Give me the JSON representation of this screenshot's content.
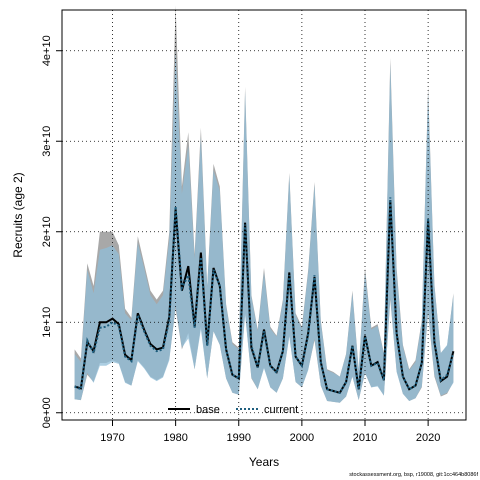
{
  "chart_data": {
    "type": "line",
    "xlabel": "Years",
    "ylabel": "Recruits (age 2)",
    "xlim": [
      1962,
      2026
    ],
    "ylim": [
      -800000000.0,
      44500000000.0
    ],
    "x_ticks": [
      1970,
      1980,
      1990,
      2000,
      2010,
      2020
    ],
    "x_tick_labels": [
      "1970",
      "1980",
      "1990",
      "2000",
      "2010",
      "2020"
    ],
    "y_ticks": [
      0,
      10000000000.0,
      20000000000.0,
      30000000000.0,
      40000000000.0
    ],
    "y_tick_labels": [
      "0e+00",
      "1e+10",
      "2e+10",
      "3e+10",
      "4e+10"
    ],
    "grid": true,
    "legend_position": "bottom",
    "footnote": "stockassessment.org, bsp, r19008, git:1cc464b8086f",
    "x": [
      1964,
      1965,
      1966,
      1967,
      1968,
      1969,
      1970,
      1971,
      1972,
      1973,
      1974,
      1975,
      1976,
      1977,
      1978,
      1979,
      1980,
      1981,
      1982,
      1983,
      1984,
      1985,
      1986,
      1987,
      1988,
      1989,
      1990,
      1991,
      1992,
      1993,
      1994,
      1995,
      1996,
      1997,
      1998,
      1999,
      2000,
      2001,
      2002,
      2003,
      2004,
      2005,
      2006,
      2007,
      2008,
      2009,
      2010,
      2011,
      2012,
      2013,
      2014,
      2015,
      2016,
      2017,
      2018,
      2019,
      2020,
      2021,
      2022,
      2023,
      2024
    ],
    "series": [
      {
        "name": "base",
        "color": "#000000",
        "band_color": "#9e9e9e",
        "values": [
          2900000000.0,
          2700000000.0,
          7800000000.0,
          6800000000.0,
          10000000000.0,
          10000000000.0,
          10400000000.0,
          9800000000.0,
          6400000000.0,
          5800000000.0,
          11000000000.0,
          9200000000.0,
          7600000000.0,
          7000000000.0,
          7200000000.0,
          10600000000.0,
          22500000000.0,
          13500000000.0,
          16200000000.0,
          9500000000.0,
          17700000000.0,
          7500000000.0,
          16000000000.0,
          14000000000.0,
          7000000000.0,
          4200000000.0,
          3800000000.0,
          21000000000.0,
          7200000000.0,
          5000000000.0,
          9200000000.0,
          5200000000.0,
          4500000000.0,
          6800000000.0,
          15500000000.0,
          6200000000.0,
          5200000000.0,
          8800000000.0,
          15000000000.0,
          5600000000.0,
          2600000000.0,
          2400000000.0,
          2200000000.0,
          3400000000.0,
          7400000000.0,
          2600000000.0,
          8500000000.0,
          5200000000.0,
          5600000000.0,
          3600000000.0,
          23500000000.0,
          8800000000.0,
          4000000000.0,
          2600000000.0,
          3000000000.0,
          5500000000.0,
          21200000000.0,
          7800000000.0,
          3500000000.0,
          4000000000.0,
          6800000000.0
        ],
        "low": [
          1500000000.0,
          1400000000.0,
          4200000000.0,
          3400000000.0,
          5500000000.0,
          5500000000.0,
          5800000000.0,
          5500000000.0,
          3400000000.0,
          3000000000.0,
          5800000000.0,
          5000000000.0,
          4000000000.0,
          3600000000.0,
          4000000000.0,
          6000000000.0,
          11500000000.0,
          7000000000.0,
          8800000000.0,
          4800000000.0,
          9500000000.0,
          3800000000.0,
          9000000000.0,
          7500000000.0,
          3800000000.0,
          2200000000.0,
          2000000000.0,
          11000000000.0,
          3800000000.0,
          2600000000.0,
          5000000000.0,
          2800000000.0,
          2200000000.0,
          3800000000.0,
          8500000000.0,
          3400000000.0,
          2800000000.0,
          4800000000.0,
          8000000000.0,
          3000000000.0,
          1300000000.0,
          1200000000.0,
          1100000000.0,
          1800000000.0,
          4000000000.0,
          1400000000.0,
          4400000000.0,
          2800000000.0,
          3000000000.0,
          1900000000.0,
          12500000000.0,
          4600000000.0,
          2100000000.0,
          1300000000.0,
          1600000000.0,
          2800000000.0,
          11000000000.0,
          4000000000.0,
          1800000000.0,
          2100000000.0,
          3400000000.0
        ],
        "high": [
          7000000000.0,
          6000000000.0,
          16500000000.0,
          14000000000.0,
          20000000000.0,
          20000000000.0,
          20000000000.0,
          18500000000.0,
          11500000000.0,
          10500000000.0,
          19500000000.0,
          16500000000.0,
          13500000000.0,
          12500000000.0,
          13500000000.0,
          20000000000.0,
          45000000000.0,
          25000000000.0,
          31000000000.0,
          17500000000.0,
          31500000000.0,
          14000000000.0,
          27500000000.0,
          25000000000.0,
          12000000000.0,
          7800000000.0,
          7200000000.0,
          36000000000.0,
          13000000000.0,
          9200000000.0,
          16000000000.0,
          9500000000.0,
          8500000000.0,
          12500000000.0,
          26500000000.0,
          11000000000.0,
          9500000000.0,
          15800000000.0,
          25500000000.0,
          10200000000.0,
          4800000000.0,
          4500000000.0,
          4000000000.0,
          6500000000.0,
          13500000000.0,
          4800000000.0,
          16000000000.0,
          9400000000.0,
          9800000000.0,
          6600000000.0,
          39200000000.0,
          16000000000.0,
          7500000000.0,
          4800000000.0,
          5800000000.0,
          10200000000.0,
          36000000000.0,
          14200000000.0,
          6600000000.0,
          7400000000.0,
          13200000000.0
        ]
      },
      {
        "name": "current",
        "color": "#1f5f7f",
        "band_color": "#90bdd8",
        "values": [
          2900000000.0,
          2600000000.0,
          8000000000.0,
          6600000000.0,
          9400000000.0,
          9500000000.0,
          10000000000.0,
          9600000000.0,
          6200000000.0,
          5700000000.0,
          10800000000.0,
          9000000000.0,
          7400000000.0,
          6800000000.0,
          7000000000.0,
          10200000000.0,
          22800000000.0,
          13800000000.0,
          15200000000.0,
          9400000000.0,
          17200000000.0,
          7400000000.0,
          15800000000.0,
          14000000000.0,
          7000000000.0,
          4200000000.0,
          3800000000.0,
          20800000000.0,
          7400000000.0,
          5000000000.0,
          9000000000.0,
          5200000000.0,
          4400000000.0,
          6800000000.0,
          15200000000.0,
          6200000000.0,
          5200000000.0,
          8600000000.0,
          15200000000.0,
          5600000000.0,
          2600000000.0,
          2400000000.0,
          2200000000.0,
          3400000000.0,
          7400000000.0,
          2600000000.0,
          8400000000.0,
          5200000000.0,
          5500000000.0,
          3600000000.0,
          23800000000.0,
          8600000000.0,
          4000000000.0,
          2600000000.0,
          3000000000.0,
          5600000000.0,
          21500000000.0,
          8000000000.0,
          3600000000.0,
          4200000000.0,
          6600000000.0
        ],
        "low": [
          1500000000.0,
          1400000000.0,
          4400000000.0,
          3300000000.0,
          5200000000.0,
          5200000000.0,
          5600000000.0,
          5400000000.0,
          3300000000.0,
          3000000000.0,
          5700000000.0,
          4900000000.0,
          3900000000.0,
          3500000000.0,
          3900000000.0,
          5800000000.0,
          11800000000.0,
          7200000000.0,
          8200000000.0,
          4800000000.0,
          9200000000.0,
          3800000000.0,
          9000000000.0,
          7500000000.0,
          3800000000.0,
          2200000000.0,
          2000000000.0,
          10800000000.0,
          3900000000.0,
          2600000000.0,
          4900000000.0,
          2800000000.0,
          2200000000.0,
          3800000000.0,
          8400000000.0,
          3400000000.0,
          2800000000.0,
          4700000000.0,
          8200000000.0,
          3000000000.0,
          1300000000.0,
          1200000000.0,
          1100000000.0,
          1800000000.0,
          4000000000.0,
          1400000000.0,
          4400000000.0,
          2800000000.0,
          2900000000.0,
          1900000000.0,
          12800000000.0,
          4500000000.0,
          2100000000.0,
          1300000000.0,
          1600000000.0,
          2900000000.0,
          11200000000.0,
          4200000000.0,
          1900000000.0,
          2200000000.0,
          3300000000.0
        ],
        "high": [
          6500000000.0,
          5600000000.0,
          15800000000.0,
          13200000000.0,
          18000000000.0,
          18200000000.0,
          18500000000.0,
          17500000000.0,
          11000000000.0,
          10200000000.0,
          18800000000.0,
          16000000000.0,
          13000000000.0,
          12000000000.0,
          13000000000.0,
          19200000000.0,
          40000000000.0,
          24200000000.0,
          29500000000.0,
          17000000000.0,
          30500000000.0,
          13800000000.0,
          26800000000.0,
          24500000000.0,
          11800000000.0,
          7600000000.0,
          7000000000.0,
          35500000000.0,
          12800000000.0,
          9000000000.0,
          15500000000.0,
          9300000000.0,
          8400000000.0,
          12200000000.0,
          26200000000.0,
          10800000000.0,
          9300000000.0,
          15500000000.0,
          25200000000.0,
          10000000000.0,
          4700000000.0,
          4400000000.0,
          4000000000.0,
          6400000000.0,
          13200000000.0,
          4700000000.0,
          15500000000.0,
          9200000000.0,
          9600000000.0,
          6500000000.0,
          38500000000.0,
          15500000000.0,
          7300000000.0,
          4700000000.0,
          5600000000.0,
          10000000000.0,
          35500000000.0,
          14000000000.0,
          6600000000.0,
          7500000000.0,
          13000000000.0
        ]
      }
    ]
  }
}
